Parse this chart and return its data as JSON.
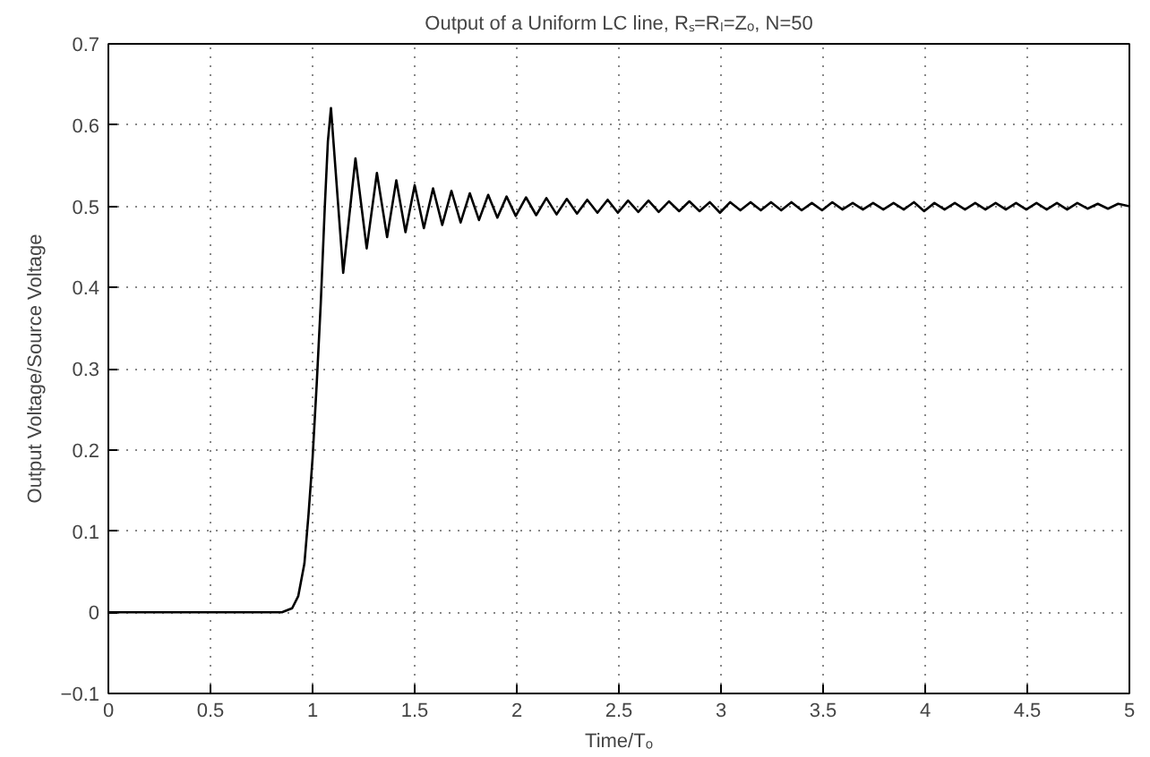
{
  "chart_data": {
    "type": "line",
    "title": "Output of a Uniform LC line, Rₛ=Rₗ=Zₒ, N=50",
    "xlabel": "Time/Tₒ",
    "ylabel": "Output Voltage/Source Voltage",
    "xlim": [
      0,
      5
    ],
    "ylim": [
      -0.1,
      0.7
    ],
    "xticks": [
      0,
      0.5,
      1,
      1.5,
      2,
      2.5,
      3,
      3.5,
      4,
      4.5,
      5
    ],
    "yticks": [
      -0.1,
      0,
      0.1,
      0.2,
      0.3,
      0.4,
      0.5,
      0.6,
      0.7
    ],
    "grid": true,
    "line_style": "solid",
    "series": [
      {
        "color": "#000000",
        "x": [
          0,
          0.85,
          0.9,
          0.93,
          0.96,
          0.98,
          1.0,
          1.02,
          1.04,
          1.06,
          1.075,
          1.09,
          1.15,
          1.21,
          1.265,
          1.315,
          1.365,
          1.41,
          1.455,
          1.5,
          1.545,
          1.59,
          1.635,
          1.68,
          1.725,
          1.77,
          1.815,
          1.86,
          1.905,
          1.95,
          1.995,
          2.045,
          2.095,
          2.145,
          2.195,
          2.245,
          2.295,
          2.345,
          2.395,
          2.445,
          2.495,
          2.545,
          2.595,
          2.645,
          2.695,
          2.745,
          2.795,
          2.845,
          2.895,
          2.945,
          2.995,
          3.045,
          3.095,
          3.145,
          3.195,
          3.245,
          3.295,
          3.345,
          3.395,
          3.445,
          3.495,
          3.545,
          3.595,
          3.645,
          3.695,
          3.745,
          3.795,
          3.845,
          3.895,
          3.945,
          3.995,
          4.045,
          4.095,
          4.145,
          4.195,
          4.245,
          4.295,
          4.345,
          4.395,
          4.445,
          4.495,
          4.545,
          4.595,
          4.645,
          4.695,
          4.745,
          4.795,
          4.845,
          4.895,
          4.945,
          5.0
        ],
        "values": [
          0,
          0,
          0.005,
          0.02,
          0.06,
          0.12,
          0.19,
          0.28,
          0.38,
          0.5,
          0.58,
          0.621,
          0.418,
          0.559,
          0.448,
          0.541,
          0.462,
          0.532,
          0.468,
          0.526,
          0.473,
          0.522,
          0.477,
          0.519,
          0.48,
          0.516,
          0.483,
          0.514,
          0.486,
          0.512,
          0.488,
          0.511,
          0.489,
          0.51,
          0.49,
          0.509,
          0.491,
          0.508,
          0.492,
          0.508,
          0.492,
          0.507,
          0.493,
          0.507,
          0.493,
          0.506,
          0.494,
          0.506,
          0.494,
          0.505,
          0.492,
          0.505,
          0.495,
          0.505,
          0.495,
          0.505,
          0.495,
          0.505,
          0.495,
          0.504,
          0.495,
          0.505,
          0.496,
          0.504,
          0.496,
          0.504,
          0.496,
          0.504,
          0.496,
          0.505,
          0.494,
          0.504,
          0.496,
          0.504,
          0.496,
          0.504,
          0.496,
          0.504,
          0.496,
          0.504,
          0.496,
          0.504,
          0.496,
          0.504,
          0.496,
          0.504,
          0.497,
          0.503,
          0.497,
          0.503,
          0.5
        ]
      }
    ]
  }
}
